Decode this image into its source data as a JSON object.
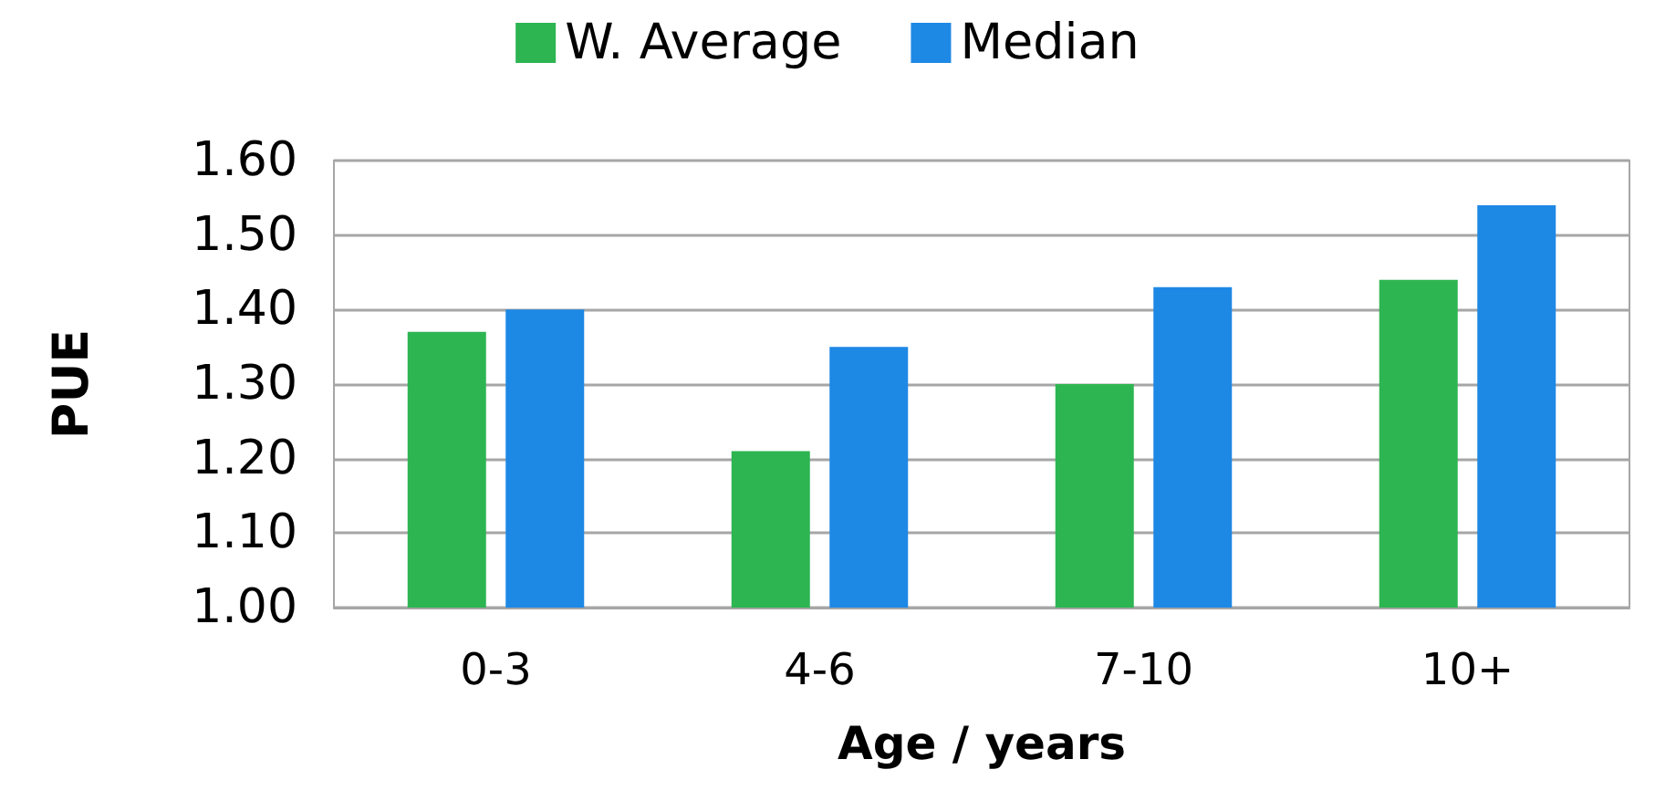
{
  "chart_data": {
    "type": "bar",
    "xlabel": "Age / years",
    "ylabel": "PUE",
    "categories": [
      "0-3",
      "4-6",
      "7-10",
      "10+"
    ],
    "series": [
      {
        "name": "W. Average",
        "color": "#2db552",
        "values": [
          1.37,
          1.21,
          1.3,
          1.44
        ]
      },
      {
        "name": "Median",
        "color": "#1e88e5",
        "values": [
          1.4,
          1.35,
          1.43,
          1.54
        ]
      }
    ],
    "ylim": [
      1.0,
      1.6
    ],
    "yticks": [
      {
        "value": 1.0,
        "label": "1.00"
      },
      {
        "value": 1.1,
        "label": "1.10"
      },
      {
        "value": 1.2,
        "label": "1.20"
      },
      {
        "value": 1.3,
        "label": "1.30"
      },
      {
        "value": 1.4,
        "label": "1.40"
      },
      {
        "value": 1.5,
        "label": "1.50"
      },
      {
        "value": 1.6,
        "label": "1.60"
      }
    ],
    "grid": "y",
    "legend": "top"
  }
}
